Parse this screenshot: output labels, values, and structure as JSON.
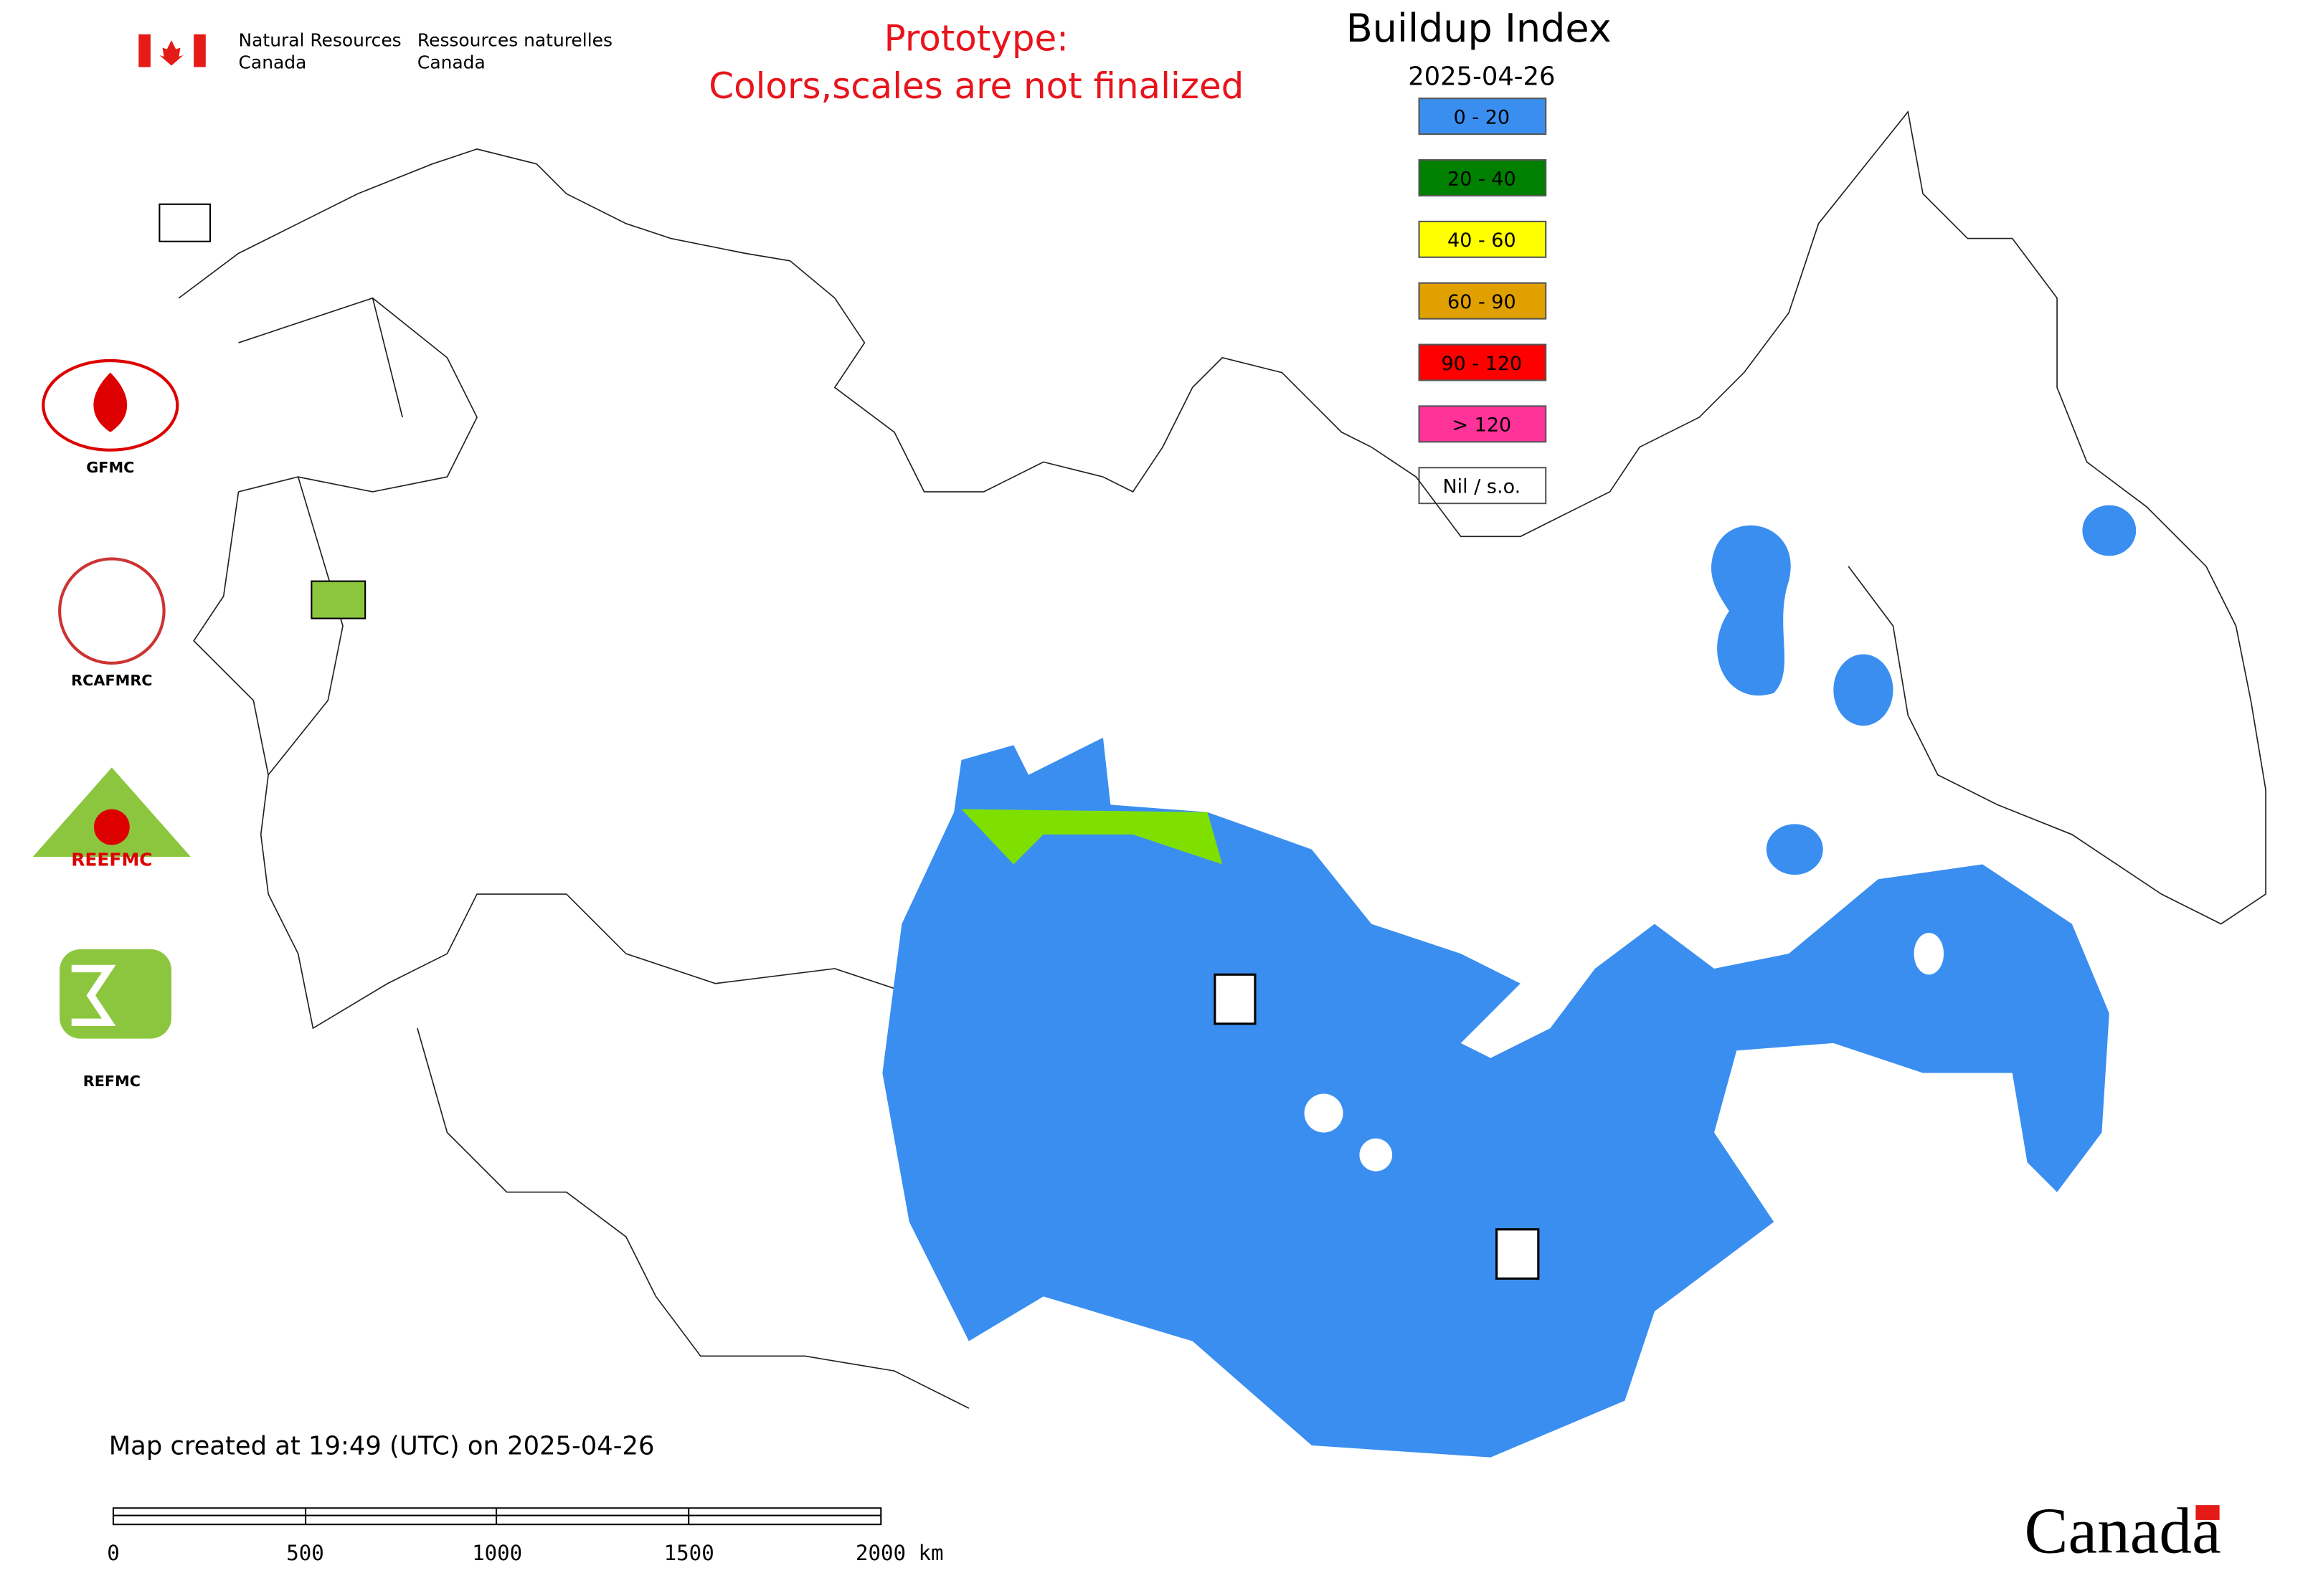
{
  "header": {
    "department_en": [
      "Natural Resources",
      "Canada"
    ],
    "department_fr": [
      "Ressources naturelles",
      "Canada"
    ]
  },
  "notice": [
    "Prototype:",
    "Colors,scales are not finalized"
  ],
  "legend": {
    "title": "Buildup Index",
    "date": "2025-04-26",
    "items": [
      {
        "label": "0 - 20",
        "color": "#3a8ef0"
      },
      {
        "label": "20 - 40",
        "color": "#008000"
      },
      {
        "label": "40 - 60",
        "color": "#ffff00"
      },
      {
        "label": "60 - 90",
        "color": "#e0a000"
      },
      {
        "label": "90 - 120",
        "color": "#ff0000"
      },
      {
        "label": "> 120",
        "color": "#ff3399"
      },
      {
        "label": "Nil / s.o.",
        "color": "#ffffff"
      }
    ]
  },
  "logos": [
    "GFMC",
    "RCAFMRC",
    "REEFMC",
    "REFMC"
  ],
  "footer": {
    "created": "Map created at 19:49 (UTC) on 2025-04-26",
    "scale_labels": [
      "0",
      "500",
      "1000",
      "1500",
      "2000 km"
    ],
    "wordmark": "Canada"
  }
}
